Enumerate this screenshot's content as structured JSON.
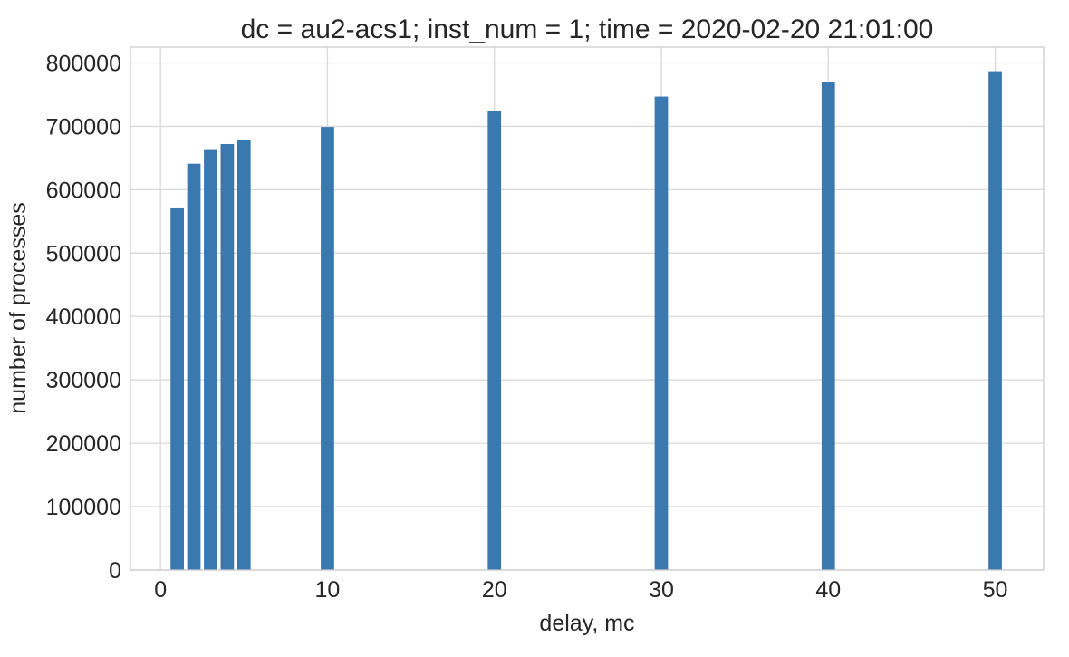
{
  "chart_data": {
    "type": "bar",
    "title": "dc = au2-acs1; inst_num = 1; time = 2020-02-20 21:01:00",
    "xlabel": "delay, mc",
    "ylabel": "number of processes",
    "x": [
      1,
      2,
      3,
      4,
      5,
      10,
      20,
      30,
      40,
      50
    ],
    "values": [
      572000,
      641000,
      664000,
      672000,
      678000,
      699000,
      724000,
      747000,
      770000,
      787000
    ],
    "xlim": [
      -1.8,
      52.9
    ],
    "ylim": [
      0,
      825000
    ],
    "xticks": [
      0,
      10,
      20,
      30,
      40,
      50
    ],
    "xtick_labels": [
      "0",
      "10",
      "20",
      "30",
      "40",
      "50"
    ],
    "yticks": [
      0,
      100000,
      200000,
      300000,
      400000,
      500000,
      600000,
      700000,
      800000
    ],
    "ytick_labels": [
      "0",
      "100000",
      "200000",
      "300000",
      "400000",
      "500000",
      "600000",
      "700000",
      "800000"
    ],
    "grid": true,
    "bar_color": "#3a78b0",
    "grid_color": "#d9d9d9",
    "frame_color": "#cccccc"
  }
}
